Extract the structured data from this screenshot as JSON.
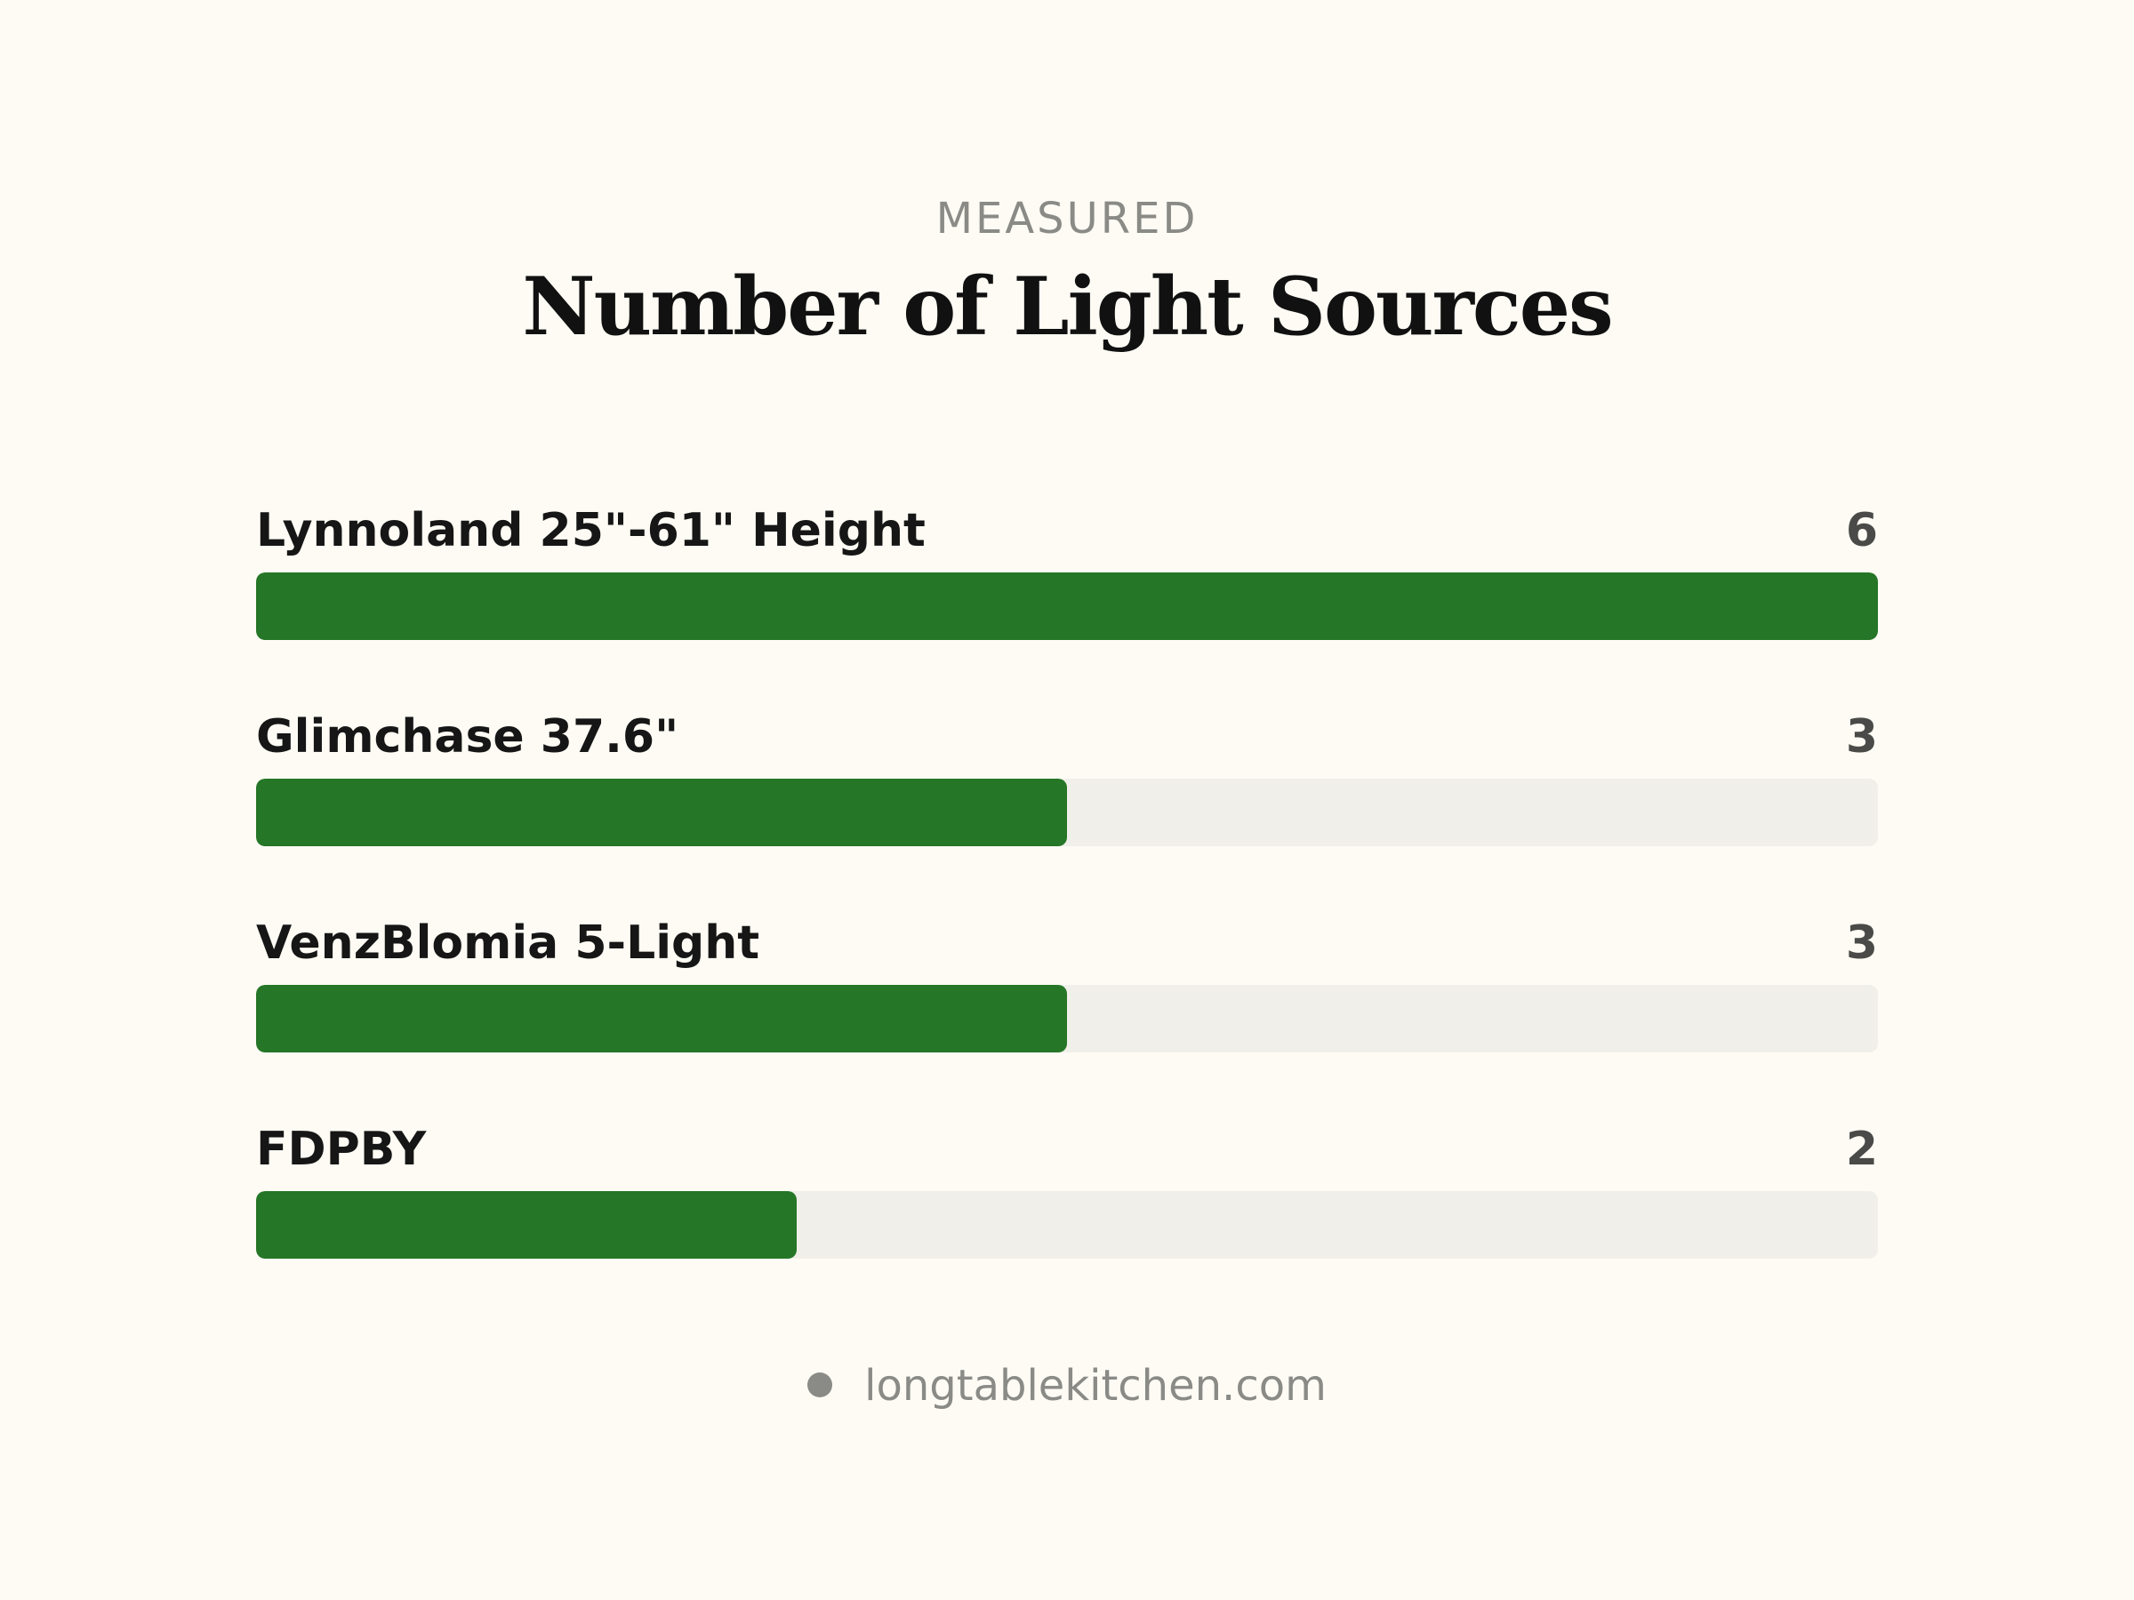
{
  "header": {
    "eyebrow": "MEASURED",
    "title": "Number of Light Sources"
  },
  "footer": {
    "source": "longtablekitchen.com"
  },
  "colors": {
    "bar": "#257626",
    "track": "#f1efe9",
    "background": "#fdfbf4"
  },
  "chart_data": {
    "type": "bar",
    "orientation": "horizontal",
    "title": "Number of Light Sources",
    "categories": [
      "Lynnoland 25\"-61\" Height",
      "Glimchase 37.6\"",
      "VenzBlomia 5-Light",
      "FDPBY"
    ],
    "values": [
      6,
      3,
      3,
      2
    ],
    "xlim": [
      0,
      6
    ],
    "grid": false
  }
}
